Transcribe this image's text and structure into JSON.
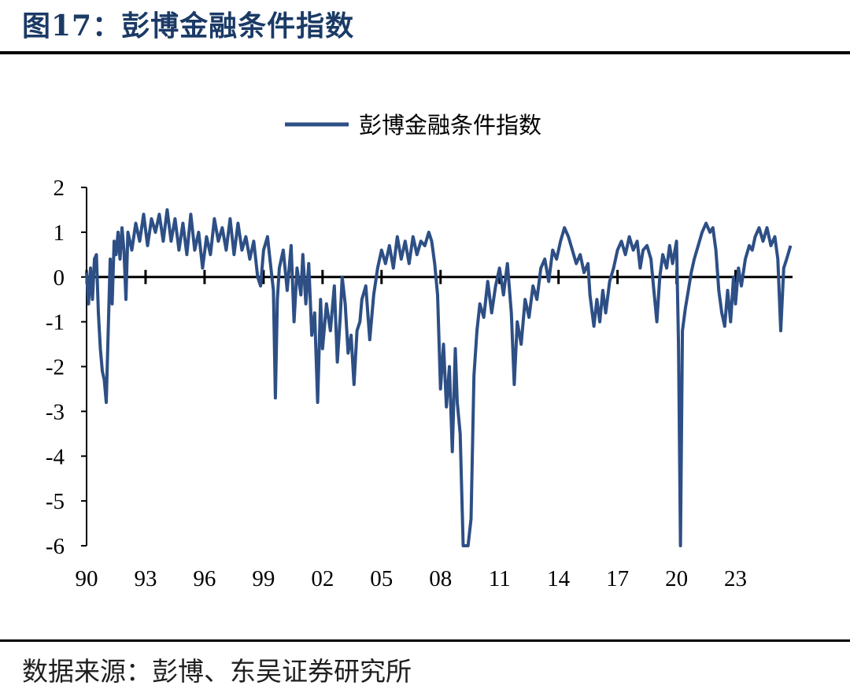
{
  "figure": {
    "title": "图17：彭博金融条件指数",
    "source": "数据来源：彭博、东吴证券研究所"
  },
  "chart_data": {
    "type": "line",
    "title": "",
    "xlabel": "",
    "ylabel": "",
    "legend_position": "top-center",
    "grid": false,
    "xlim": [
      1990,
      2025.9
    ],
    "ylim": [
      -6,
      2
    ],
    "yticks": [
      2,
      1,
      0,
      -1,
      -2,
      -3,
      -4,
      -5,
      -6
    ],
    "xticks": [
      {
        "x": 1990,
        "label": "90"
      },
      {
        "x": 1993,
        "label": "93"
      },
      {
        "x": 1996,
        "label": "96"
      },
      {
        "x": 1999,
        "label": "99"
      },
      {
        "x": 2002,
        "label": "02"
      },
      {
        "x": 2005,
        "label": "05"
      },
      {
        "x": 2008,
        "label": "08"
      },
      {
        "x": 2011,
        "label": "11"
      },
      {
        "x": 2014,
        "label": "14"
      },
      {
        "x": 2017,
        "label": "17"
      },
      {
        "x": 2020,
        "label": "20"
      },
      {
        "x": 2023,
        "label": "23"
      }
    ],
    "series": [
      {
        "name": "彭博金融条件指数",
        "color": "#2d4f85",
        "points": [
          [
            1990.0,
            0.1
          ],
          [
            1990.1,
            -0.6
          ],
          [
            1990.2,
            0.2
          ],
          [
            1990.3,
            -0.5
          ],
          [
            1990.4,
            0.4
          ],
          [
            1990.5,
            0.5
          ],
          [
            1990.6,
            -0.8
          ],
          [
            1990.7,
            -1.6
          ],
          [
            1990.8,
            -2.1
          ],
          [
            1990.9,
            -2.3
          ],
          [
            1991.0,
            -2.8
          ],
          [
            1991.1,
            -1.2
          ],
          [
            1991.2,
            0.4
          ],
          [
            1991.3,
            -0.6
          ],
          [
            1991.4,
            0.8
          ],
          [
            1991.5,
            0.5
          ],
          [
            1991.6,
            1.0
          ],
          [
            1991.7,
            0.4
          ],
          [
            1991.8,
            1.1
          ],
          [
            1991.9,
            0.6
          ],
          [
            1992.0,
            -0.5
          ],
          [
            1992.1,
            1.0
          ],
          [
            1992.3,
            0.6
          ],
          [
            1992.5,
            1.2
          ],
          [
            1992.7,
            0.8
          ],
          [
            1992.9,
            1.4
          ],
          [
            1993.1,
            0.7
          ],
          [
            1993.3,
            1.3
          ],
          [
            1993.5,
            1.0
          ],
          [
            1993.7,
            1.4
          ],
          [
            1993.9,
            0.8
          ],
          [
            1994.1,
            1.5
          ],
          [
            1994.3,
            0.8
          ],
          [
            1994.5,
            1.3
          ],
          [
            1994.7,
            0.6
          ],
          [
            1994.9,
            1.2
          ],
          [
            1995.1,
            0.5
          ],
          [
            1995.3,
            1.4
          ],
          [
            1995.5,
            0.6
          ],
          [
            1995.7,
            1.0
          ],
          [
            1995.9,
            0.2
          ],
          [
            1996.1,
            0.9
          ],
          [
            1996.3,
            0.5
          ],
          [
            1996.5,
            1.3
          ],
          [
            1996.7,
            0.8
          ],
          [
            1996.9,
            1.1
          ],
          [
            1997.1,
            0.6
          ],
          [
            1997.3,
            1.3
          ],
          [
            1997.5,
            0.5
          ],
          [
            1997.7,
            1.2
          ],
          [
            1997.9,
            0.6
          ],
          [
            1998.1,
            0.9
          ],
          [
            1998.3,
            0.4
          ],
          [
            1998.5,
            0.8
          ],
          [
            1998.7,
            0.0
          ],
          [
            1998.85,
            -0.2
          ],
          [
            1999.0,
            0.6
          ],
          [
            1999.2,
            0.9
          ],
          [
            1999.35,
            0.3
          ],
          [
            1999.5,
            -0.3
          ],
          [
            1999.6,
            -2.7
          ],
          [
            1999.7,
            -0.5
          ],
          [
            1999.8,
            0.2
          ],
          [
            2000.0,
            0.6
          ],
          [
            2000.2,
            -0.3
          ],
          [
            2000.4,
            0.7
          ],
          [
            2000.55,
            -1.0
          ],
          [
            2000.7,
            0.2
          ],
          [
            2000.9,
            -0.4
          ],
          [
            2001.0,
            0.5
          ],
          [
            2001.15,
            -0.6
          ],
          [
            2001.3,
            0.3
          ],
          [
            2001.45,
            -1.3
          ],
          [
            2001.6,
            -0.8
          ],
          [
            2001.75,
            -2.8
          ],
          [
            2001.9,
            -0.5
          ],
          [
            2002.0,
            -1.6
          ],
          [
            2002.2,
            -0.6
          ],
          [
            2002.4,
            -1.2
          ],
          [
            2002.6,
            -0.2
          ],
          [
            2002.75,
            -1.9
          ],
          [
            2002.9,
            -0.9
          ],
          [
            2003.0,
            0.0
          ],
          [
            2003.15,
            -0.6
          ],
          [
            2003.3,
            -1.7
          ],
          [
            2003.45,
            -1.3
          ],
          [
            2003.6,
            -2.4
          ],
          [
            2003.75,
            -1.2
          ],
          [
            2003.9,
            -1.0
          ],
          [
            2004.0,
            -0.5
          ],
          [
            2004.2,
            -0.2
          ],
          [
            2004.4,
            -1.4
          ],
          [
            2004.6,
            -0.4
          ],
          [
            2004.8,
            0.2
          ],
          [
            2005.0,
            0.6
          ],
          [
            2005.2,
            0.3
          ],
          [
            2005.4,
            0.7
          ],
          [
            2005.6,
            0.2
          ],
          [
            2005.8,
            0.9
          ],
          [
            2006.0,
            0.4
          ],
          [
            2006.2,
            0.8
          ],
          [
            2006.4,
            0.3
          ],
          [
            2006.6,
            0.9
          ],
          [
            2006.8,
            0.5
          ],
          [
            2007.0,
            0.8
          ],
          [
            2007.2,
            0.7
          ],
          [
            2007.4,
            1.0
          ],
          [
            2007.55,
            0.8
          ],
          [
            2007.7,
            0.3
          ],
          [
            2007.85,
            -0.4
          ],
          [
            2008.0,
            -2.5
          ],
          [
            2008.15,
            -1.5
          ],
          [
            2008.3,
            -2.9
          ],
          [
            2008.45,
            -2.0
          ],
          [
            2008.6,
            -3.9
          ],
          [
            2008.75,
            -1.6
          ],
          [
            2008.85,
            -2.8
          ],
          [
            2009.0,
            -3.5
          ],
          [
            2009.15,
            -6.0
          ],
          [
            2009.4,
            -6.0
          ],
          [
            2009.55,
            -5.4
          ],
          [
            2009.7,
            -2.2
          ],
          [
            2009.85,
            -1.2
          ],
          [
            2010.0,
            -0.6
          ],
          [
            2010.2,
            -0.9
          ],
          [
            2010.4,
            -0.1
          ],
          [
            2010.6,
            -0.8
          ],
          [
            2010.8,
            -0.2
          ],
          [
            2011.0,
            0.2
          ],
          [
            2011.2,
            -0.4
          ],
          [
            2011.4,
            0.3
          ],
          [
            2011.6,
            -0.8
          ],
          [
            2011.75,
            -2.4
          ],
          [
            2011.9,
            -1.0
          ],
          [
            2012.1,
            -1.5
          ],
          [
            2012.3,
            -0.5
          ],
          [
            2012.5,
            -0.9
          ],
          [
            2012.7,
            -0.2
          ],
          [
            2012.9,
            -0.5
          ],
          [
            2013.1,
            0.2
          ],
          [
            2013.3,
            0.4
          ],
          [
            2013.5,
            -0.1
          ],
          [
            2013.7,
            0.6
          ],
          [
            2013.9,
            0.4
          ],
          [
            2014.1,
            0.8
          ],
          [
            2014.3,
            1.1
          ],
          [
            2014.5,
            0.9
          ],
          [
            2014.7,
            0.6
          ],
          [
            2014.9,
            0.3
          ],
          [
            2015.1,
            0.5
          ],
          [
            2015.3,
            0.1
          ],
          [
            2015.5,
            0.3
          ],
          [
            2015.6,
            -0.4
          ],
          [
            2015.8,
            -1.1
          ],
          [
            2015.95,
            -0.5
          ],
          [
            2016.1,
            -1.0
          ],
          [
            2016.25,
            -0.3
          ],
          [
            2016.4,
            -0.8
          ],
          [
            2016.6,
            -0.1
          ],
          [
            2016.8,
            0.2
          ],
          [
            2017.0,
            0.6
          ],
          [
            2017.2,
            0.8
          ],
          [
            2017.4,
            0.5
          ],
          [
            2017.6,
            0.9
          ],
          [
            2017.8,
            0.6
          ],
          [
            2018.0,
            0.8
          ],
          [
            2018.15,
            0.2
          ],
          [
            2018.3,
            0.6
          ],
          [
            2018.5,
            0.7
          ],
          [
            2018.7,
            0.4
          ],
          [
            2018.85,
            -0.3
          ],
          [
            2019.0,
            -1.0
          ],
          [
            2019.15,
            0.0
          ],
          [
            2019.3,
            0.5
          ],
          [
            2019.5,
            0.2
          ],
          [
            2019.65,
            0.7
          ],
          [
            2019.8,
            0.3
          ],
          [
            2020.0,
            0.8
          ],
          [
            2020.1,
            -1.5
          ],
          [
            2020.2,
            -6.0
          ],
          [
            2020.3,
            -1.2
          ],
          [
            2020.45,
            -0.7
          ],
          [
            2020.6,
            -0.3
          ],
          [
            2020.75,
            0.1
          ],
          [
            2020.9,
            0.4
          ],
          [
            2021.1,
            0.7
          ],
          [
            2021.3,
            1.0
          ],
          [
            2021.5,
            1.2
          ],
          [
            2021.7,
            1.0
          ],
          [
            2021.85,
            1.1
          ],
          [
            2022.0,
            0.6
          ],
          [
            2022.15,
            -0.3
          ],
          [
            2022.3,
            -0.8
          ],
          [
            2022.45,
            -1.1
          ],
          [
            2022.6,
            -0.3
          ],
          [
            2022.75,
            -1.0
          ],
          [
            2022.9,
            0.0
          ],
          [
            2023.0,
            -0.6
          ],
          [
            2023.15,
            0.2
          ],
          [
            2023.3,
            -0.2
          ],
          [
            2023.5,
            0.4
          ],
          [
            2023.7,
            0.7
          ],
          [
            2023.85,
            0.6
          ],
          [
            2024.0,
            0.9
          ],
          [
            2024.2,
            1.1
          ],
          [
            2024.4,
            0.8
          ],
          [
            2024.6,
            1.1
          ],
          [
            2024.8,
            0.7
          ],
          [
            2025.0,
            0.9
          ],
          [
            2025.15,
            0.4
          ],
          [
            2025.3,
            -1.2
          ],
          [
            2025.45,
            0.2
          ],
          [
            2025.6,
            0.4
          ],
          [
            2025.8,
            0.7
          ]
        ]
      }
    ]
  }
}
